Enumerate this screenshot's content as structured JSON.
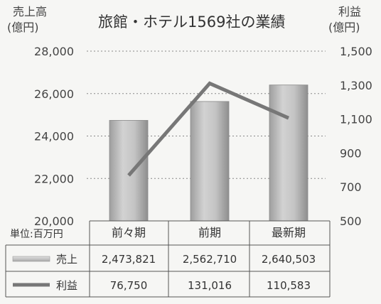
{
  "chart_data": {
    "type": "bar",
    "title": "旅館・ホテル1569社の業績",
    "categories": [
      "前々期",
      "前期",
      "最新期"
    ],
    "left_axis": {
      "label_line1": "売上高",
      "label_line2": "(億円)",
      "ylim": [
        20000,
        28000
      ],
      "ticks": [
        "28,000",
        "26,000",
        "24,000",
        "22,000",
        "20,000"
      ]
    },
    "right_axis": {
      "label_line1": "利益",
      "label_line2": "(億円)",
      "ylim": [
        500,
        1500
      ],
      "ticks": [
        "1,500",
        "1,300",
        "1,100",
        "900",
        "700",
        "500"
      ]
    },
    "series": [
      {
        "name": "売上",
        "type": "bar",
        "axis": "left",
        "values": [
          24738,
          25627,
          26405
        ],
        "color": "#b5b5b5"
      },
      {
        "name": "利益",
        "type": "line",
        "axis": "right",
        "values": [
          768,
          1310,
          1106
        ],
        "color": "#777777"
      }
    ],
    "table": {
      "unit_label": "単位:百万円",
      "rows": [
        {
          "name": "売上",
          "values": [
            "2,473,821",
            "2,562,710",
            "2,640,503"
          ]
        },
        {
          "name": "利益",
          "values": [
            "76,750",
            "131,016",
            "110,583"
          ]
        }
      ]
    },
    "grid": true
  }
}
